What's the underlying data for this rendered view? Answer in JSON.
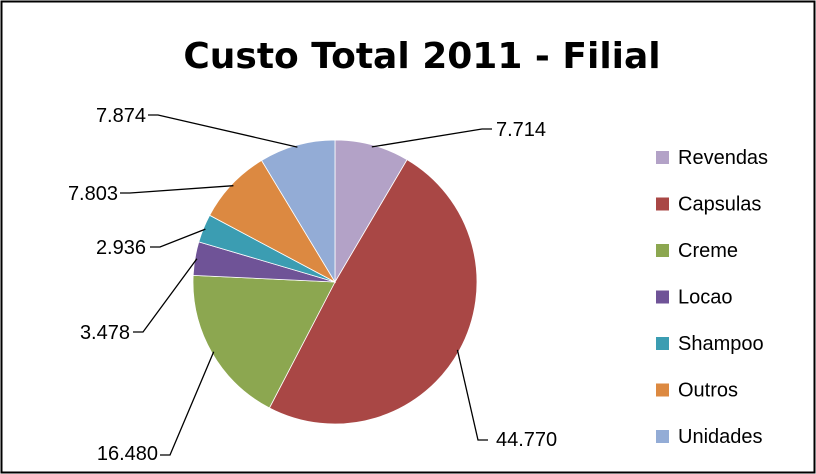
{
  "chart_data": {
    "type": "pie",
    "title": "Custo Total 2011 - Filial",
    "categories": [
      "Revendas",
      "Capsulas",
      "Creme",
      "Locao",
      "Shampoo",
      "Outros",
      "Unidades"
    ],
    "values": [
      7714,
      44770,
      16480,
      3478,
      2936,
      7803,
      7874
    ],
    "data_labels": [
      "7.714",
      "44.770",
      "16.480",
      "3.478",
      "2.936",
      "7.803",
      "7.874"
    ],
    "colors": [
      "#B3A2C7",
      "#A94745",
      "#8CA750",
      "#6F5397",
      "#3B9DB2",
      "#DC8941",
      "#93ACD6"
    ],
    "legend_position": "right",
    "start_angle": "12 o'clock, clockwise"
  }
}
